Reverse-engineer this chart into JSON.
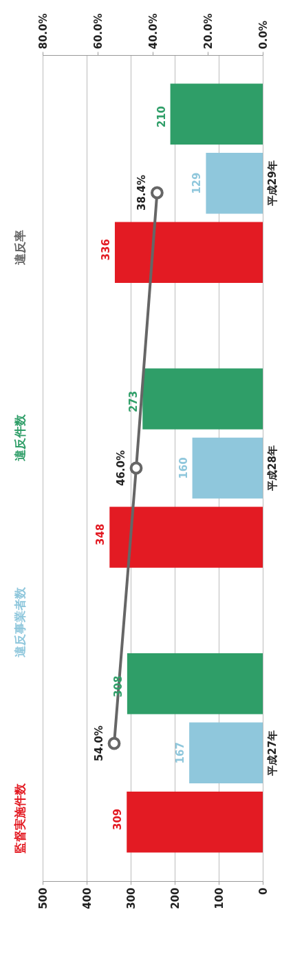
{
  "chart_data": {
    "type": "bar",
    "orientation": "horizontal",
    "categories": [
      "平成29年",
      "平成28年",
      "平成27年"
    ],
    "series": [
      {
        "name": "監督実施件数",
        "color": "#e31b23",
        "values": [
          336,
          348,
          309
        ],
        "value_labels": [
          "336",
          "348",
          "309"
        ]
      },
      {
        "name": "違反事業者数",
        "color": "#8fc7dc",
        "values": [
          129,
          160,
          167
        ],
        "value_labels": [
          "129",
          "160",
          "167"
        ]
      },
      {
        "name": "違反件数",
        "color": "#2f9e68",
        "values": [
          210,
          273,
          308
        ],
        "value_labels": [
          "210",
          "273",
          "308"
        ]
      },
      {
        "name": "違反率",
        "type": "line",
        "axis": "x2",
        "color": "#666666",
        "values": [
          38.4,
          46.0,
          54.0
        ],
        "value_labels": [
          "38.4%",
          "46.0%",
          "54.0%"
        ]
      }
    ],
    "xlim": [
      500,
      0
    ],
    "xticks": [
      500,
      400,
      300,
      200,
      100,
      0
    ],
    "x2lim": [
      80,
      0
    ],
    "x2ticks": [
      {
        "value": 80,
        "label": "80.0%"
      },
      {
        "value": 60,
        "label": "60.0%"
      },
      {
        "value": 40,
        "label": "40.0%"
      },
      {
        "value": 20,
        "label": "20.0%"
      },
      {
        "value": 0,
        "label": "0.0%"
      }
    ],
    "grid": "x",
    "legend": "left",
    "marker": "circle",
    "line_style": "solid"
  }
}
